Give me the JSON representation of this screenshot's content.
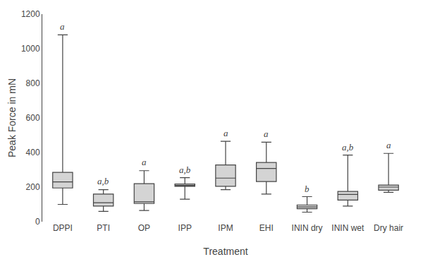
{
  "chart_data": {
    "type": "box",
    "xlabel": "Treatment",
    "ylabel": "Peak Force in mN",
    "categories": [
      "DPPI",
      "PTI",
      "OP",
      "IPP",
      "IPM",
      "EHI",
      "ININ dry",
      "ININ wet",
      "Dry hair"
    ],
    "whislo": [
      100,
      60,
      65,
      130,
      185,
      160,
      55,
      90,
      170
    ],
    "q1": [
      195,
      90,
      105,
      205,
      205,
      232,
      75,
      125,
      182
    ],
    "median": [
      230,
      110,
      115,
      210,
      252,
      308,
      85,
      158,
      200
    ],
    "q3": [
      285,
      160,
      220,
      218,
      328,
      342,
      97,
      175,
      212
    ],
    "whishi": [
      1080,
      185,
      295,
      255,
      465,
      460,
      145,
      385,
      395
    ],
    "annotations": [
      {
        "x": "DPPI",
        "y": 1090,
        "text": "a"
      },
      {
        "x": "PTI",
        "y": 195,
        "text": "a,b"
      },
      {
        "x": "OP",
        "y": 308,
        "text": "a"
      },
      {
        "x": "IPP",
        "y": 262,
        "text": "a,b"
      },
      {
        "x": "IPM",
        "y": 475,
        "text": "a"
      },
      {
        "x": "EHI",
        "y": 470,
        "text": "a"
      },
      {
        "x": "ININ dry",
        "y": 152,
        "text": "b"
      },
      {
        "x": "ININ wet",
        "y": 393,
        "text": "a,b"
      },
      {
        "x": "Dry hair",
        "y": 403,
        "text": "a"
      }
    ],
    "color": "#d4d4d4",
    "ylim": [
      0,
      1200
    ],
    "yticks": [
      0,
      200,
      400,
      600,
      800,
      1000,
      1200
    ],
    "grid": false
  }
}
